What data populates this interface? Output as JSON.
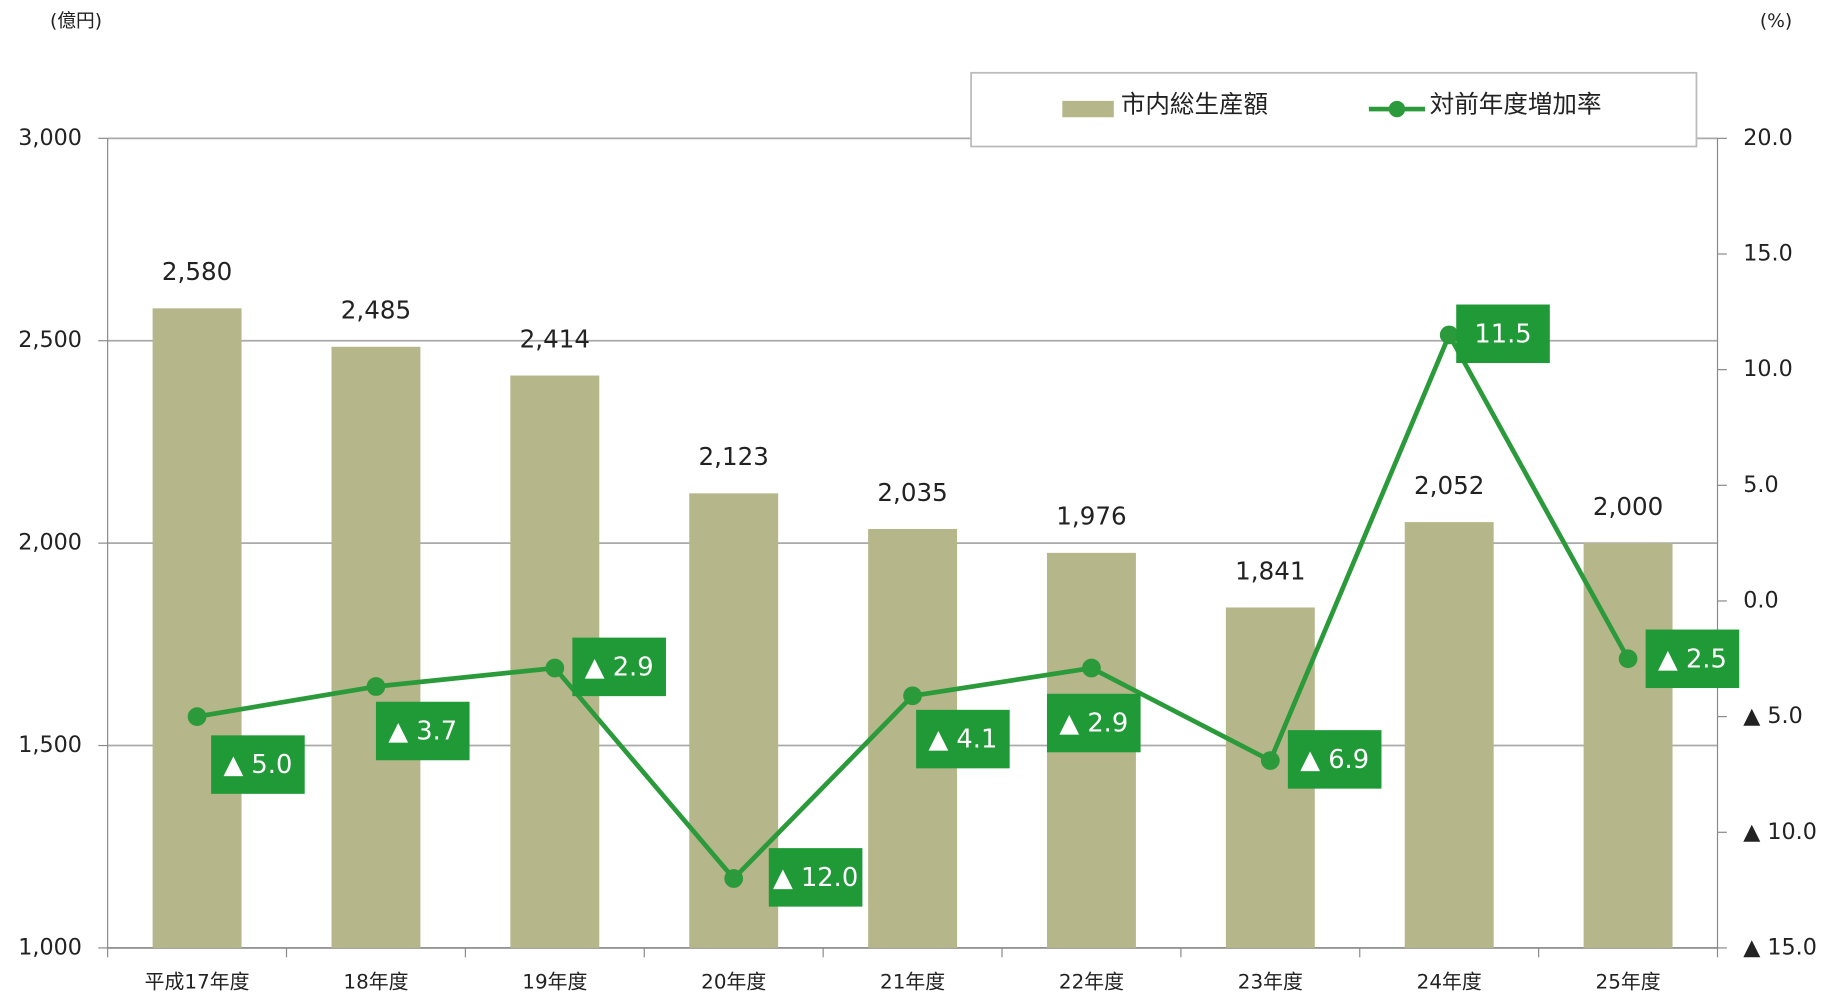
{
  "chart_data": {
    "type": "bar_line",
    "y_unit": "(億円)",
    "y2_unit": "(%)",
    "categories": [
      "平成17年度",
      "18年度",
      "19年度",
      "20年度",
      "21年度",
      "22年度",
      "23年度",
      "24年度",
      "25年度"
    ],
    "series": [
      {
        "name": "市内総生産額",
        "type": "bar",
        "color": "#b5b68a",
        "values": [
          2580,
          2485,
          2414,
          2123,
          2035,
          1976,
          1841,
          2052,
          2000
        ],
        "value_labels": [
          "2,580",
          "2,485",
          "2,414",
          "2,123",
          "2,035",
          "1,976",
          "1,841",
          "2,052",
          "2,000"
        ]
      },
      {
        "name": "対前年度増加率",
        "type": "line",
        "axis": "y2",
        "color": "#2a9a3a",
        "values": [
          -5.0,
          -3.7,
          -2.9,
          -12.0,
          -4.1,
          -2.9,
          -6.9,
          11.5,
          -2.5
        ],
        "value_labels": [
          "▲ 5.0",
          "▲ 3.7",
          "▲ 2.9",
          "▲ 12.0",
          "▲ 4.1",
          "▲ 2.9",
          "▲ 6.9",
          "11.5",
          "▲ 2.5"
        ]
      }
    ],
    "ylim": [
      1000,
      3000
    ],
    "yticks": [
      {
        "value": 1000,
        "label": "1,000"
      },
      {
        "value": 1500,
        "label": "1,500"
      },
      {
        "value": 2000,
        "label": "2,000"
      },
      {
        "value": 2500,
        "label": "2,500"
      },
      {
        "value": 3000,
        "label": "3,000"
      }
    ],
    "y2lim": [
      -15,
      20
    ],
    "y2ticks": [
      {
        "value": -15,
        "label": "▲ 15.0"
      },
      {
        "value": -10,
        "label": "▲ 10.0"
      },
      {
        "value": -5,
        "label": "▲ 5.0"
      },
      {
        "value": 0,
        "label": "0.0"
      },
      {
        "value": 5,
        "label": "5.0"
      },
      {
        "value": 10,
        "label": "10.0"
      },
      {
        "value": 15,
        "label": "15.0"
      },
      {
        "value": 20,
        "label": "20.0"
      }
    ],
    "grid": true,
    "legend": "top-right"
  }
}
